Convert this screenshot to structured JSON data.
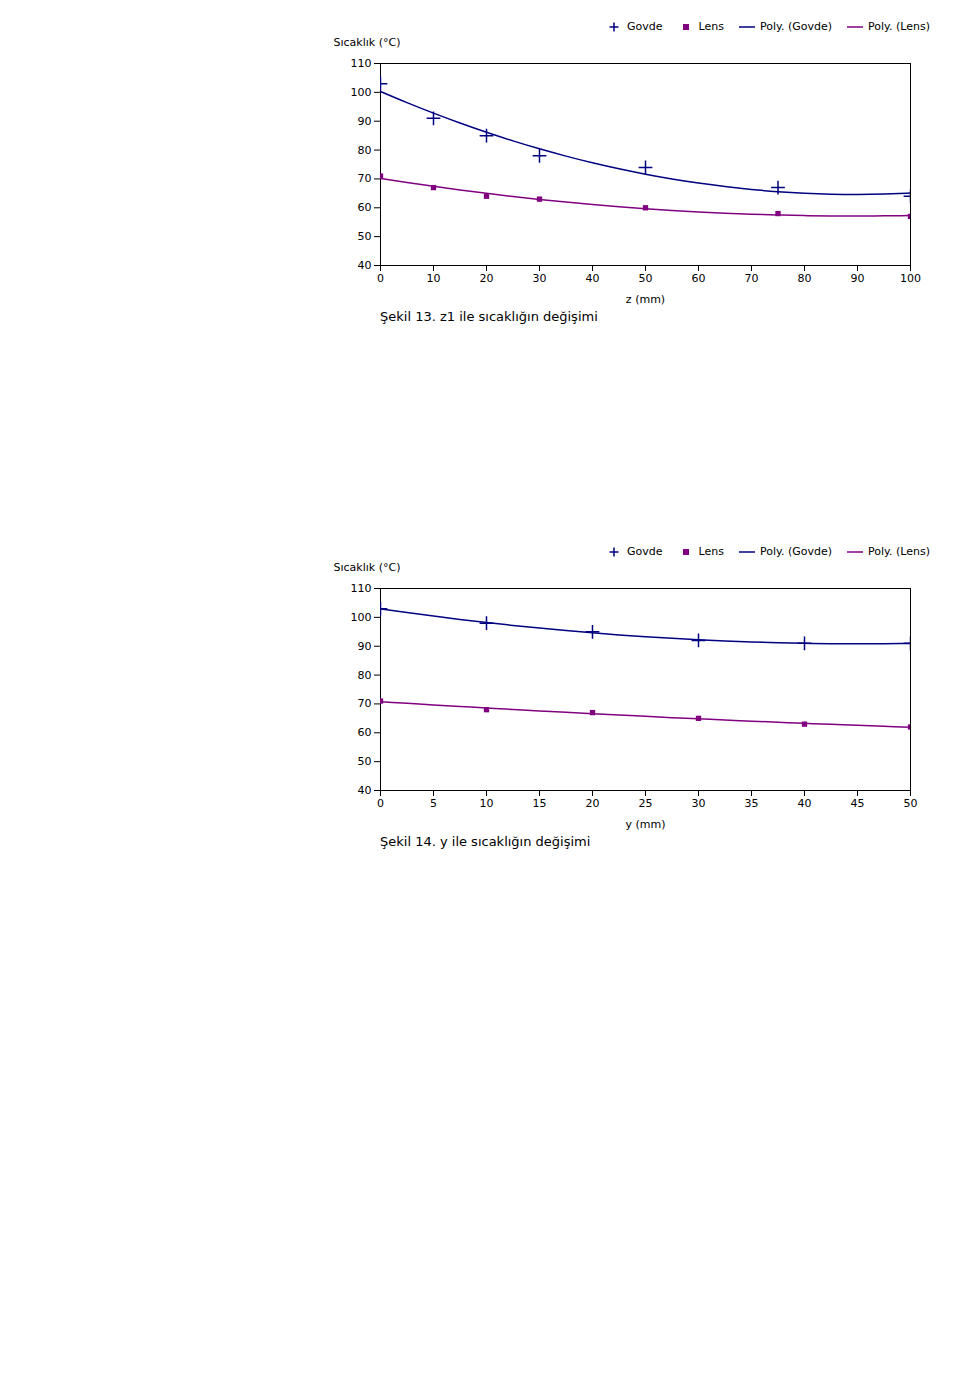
{
  "chart_data": [
    {
      "type": "scatter",
      "xlabel": "z (mm)",
      "ylabel": "Sıcaklık (°C)",
      "caption": "Şekil 13. z1 ile sıcaklığın değişimi",
      "xlim": [
        0,
        100
      ],
      "ylim": [
        40,
        110
      ],
      "xticks": [
        0,
        10,
        20,
        30,
        40,
        50,
        60,
        70,
        80,
        90,
        100
      ],
      "yticks": [
        40,
        50,
        60,
        70,
        80,
        90,
        100,
        110
      ],
      "grid": false,
      "legend": "upper right",
      "series": [
        {
          "name": "Govde",
          "type": "scatter",
          "marker": "plus",
          "color": "#000080",
          "x": [
            0,
            10,
            20,
            30,
            50,
            75,
            100
          ],
          "values": [
            103,
            91,
            85,
            78,
            74,
            67,
            64
          ]
        },
        {
          "name": "Lens",
          "type": "scatter",
          "marker": "square",
          "color": "#800080",
          "x": [
            0,
            10,
            20,
            30,
            50,
            75,
            100
          ],
          "values": [
            71,
            67,
            64,
            63,
            60,
            58,
            57
          ]
        },
        {
          "name": "Poly. (Govde)",
          "type": "line",
          "line_style": "solid",
          "color": "#000080",
          "x": [
            0,
            5,
            10,
            15,
            20,
            25,
            30,
            35,
            40,
            45,
            50,
            55,
            60,
            65,
            70,
            75,
            80,
            85,
            90,
            95,
            100
          ],
          "values": [
            100.3,
            96.43,
            92.79,
            89.37,
            86.17,
            83.19,
            80.43,
            77.9,
            75.58,
            73.49,
            71.62,
            69.97,
            68.55,
            67.34,
            66.36,
            65.59,
            65.05,
            64.73,
            64.63,
            64.76,
            65.1
          ]
        },
        {
          "name": "Poly. (Lens)",
          "type": "line",
          "line_style": "solid",
          "color": "#800080",
          "x": [
            0,
            5,
            10,
            15,
            20,
            25,
            30,
            35,
            40,
            45,
            50,
            55,
            60,
            65,
            70,
            75,
            80,
            85,
            90,
            95,
            100
          ],
          "values": [
            70.18,
            68.76,
            67.43,
            66.17,
            65.0,
            63.91,
            62.9,
            61.97,
            61.13,
            60.36,
            59.68,
            59.08,
            58.56,
            58.12,
            57.76,
            57.49,
            57.29,
            57.18,
            57.15,
            57.2,
            57.33
          ]
        }
      ]
    },
    {
      "type": "scatter",
      "xlabel": "y (mm)",
      "ylabel": "Sıcaklık (°C)",
      "caption": "Şekil 14. y ile sıcaklığın değişimi",
      "xlim": [
        0,
        50
      ],
      "ylim": [
        40,
        110
      ],
      "xticks": [
        0,
        5,
        10,
        15,
        20,
        25,
        30,
        35,
        40,
        45,
        50
      ],
      "yticks": [
        40,
        50,
        60,
        70,
        80,
        90,
        100,
        110
      ],
      "grid": false,
      "legend": "upper right",
      "series": [
        {
          "name": "Govde",
          "type": "scatter",
          "marker": "plus",
          "color": "#000080",
          "x": [
            0,
            10,
            20,
            30,
            40,
            50
          ],
          "values": [
            103,
            98,
            95,
            92,
            91,
            91
          ]
        },
        {
          "name": "Lens",
          "type": "scatter",
          "marker": "square",
          "color": "#800080",
          "x": [
            0,
            10,
            20,
            30,
            40,
            50
          ],
          "values": [
            71,
            68,
            67,
            65,
            63,
            62
          ]
        },
        {
          "name": "Poly. (Govde)",
          "type": "line",
          "line_style": "solid",
          "color": "#000080",
          "x": [
            0,
            2.5,
            5,
            7.5,
            10,
            12.5,
            15,
            17.5,
            20,
            22.5,
            25,
            27.5,
            30,
            32.5,
            35,
            37.5,
            40,
            42.5,
            45,
            47.5,
            50
          ],
          "values": [
            102.96,
            101.66,
            100.44,
            99.29,
            98.21,
            97.2,
            96.27,
            95.41,
            94.63,
            93.92,
            93.28,
            92.72,
            92.23,
            91.81,
            91.47,
            91.2,
            91.01,
            90.89,
            90.84,
            90.86,
            90.96
          ]
        },
        {
          "name": "Poly. (Lens)",
          "type": "line",
          "line_style": "solid",
          "color": "#800080",
          "x": [
            0,
            2.5,
            5,
            7.5,
            10,
            12.5,
            15,
            17.5,
            20,
            22.5,
            25,
            27.5,
            30,
            32.5,
            35,
            37.5,
            40,
            42.5,
            45,
            47.5,
            50
          ],
          "values": [
            70.79,
            70.22,
            69.66,
            69.12,
            68.59,
            68.07,
            67.57,
            67.08,
            66.6,
            66.14,
            65.69,
            65.25,
            64.83,
            64.42,
            64.02,
            63.64,
            63.27,
            62.92,
            62.57,
            62.24,
            61.93
          ]
        }
      ]
    }
  ]
}
